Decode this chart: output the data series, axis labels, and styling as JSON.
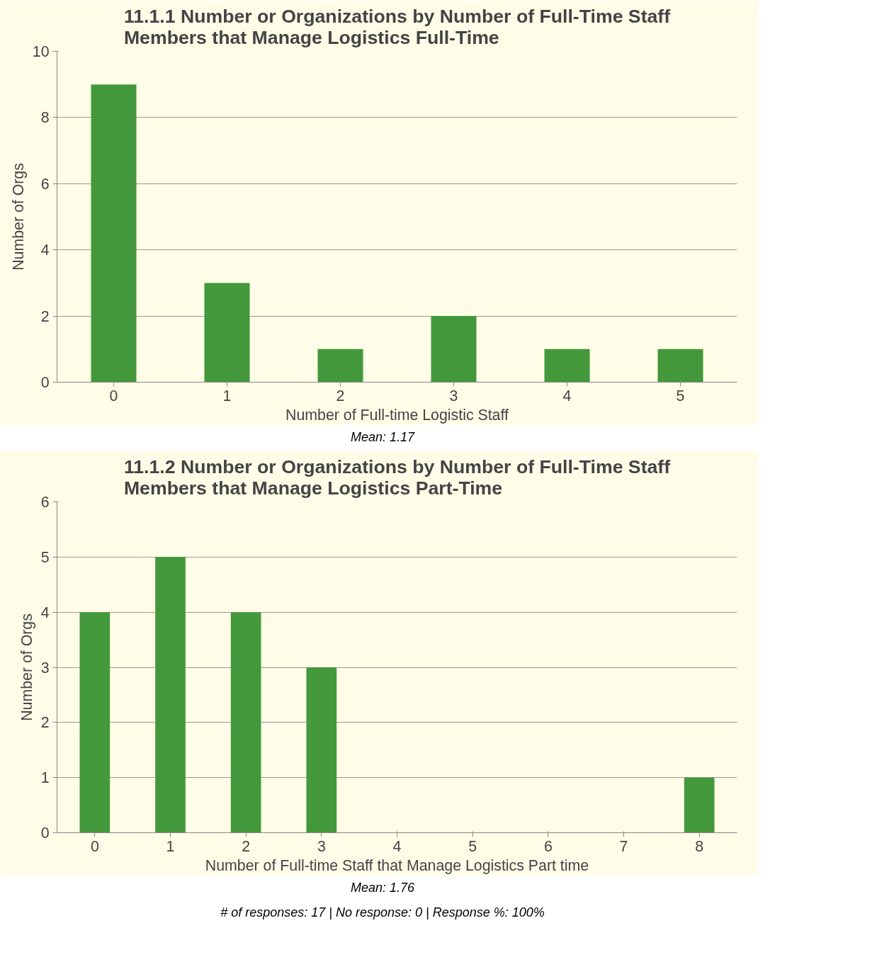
{
  "chart_data": [
    {
      "type": "bar",
      "title": "11.1.1 Number or Organizations by Number of Full-Time Staff\nMembers that Manage Logistics Full-Time",
      "xlabel": "Number of Full-time Logistic Staff",
      "ylabel": "Number of Orgs",
      "categories": [
        "0",
        "1",
        "2",
        "3",
        "4",
        "5"
      ],
      "values": [
        9,
        3,
        1,
        2,
        1,
        1
      ],
      "color": "#43983b",
      "ylim": [
        0,
        10
      ],
      "yticks": [
        0,
        2,
        4,
        6,
        8,
        10
      ],
      "grid": "y",
      "annotations": [
        "Mean: 1.17"
      ]
    },
    {
      "type": "bar",
      "title": "11.1.2 Number or Organizations by Number of Full-Time Staff\nMembers that Manage Logistics Part-Time",
      "xlabel": "Number of Full-time Staff that Manage Logistics Part time",
      "ylabel": "Number of Orgs",
      "categories": [
        "0",
        "1",
        "2",
        "3",
        "4",
        "5",
        "6",
        "7",
        "8"
      ],
      "values": [
        4,
        5,
        4,
        3,
        0,
        0,
        0,
        0,
        1
      ],
      "color": "#43983b",
      "ylim": [
        0,
        6
      ],
      "yticks": [
        0,
        1,
        2,
        3,
        4,
        5,
        6
      ],
      "grid": "y",
      "annotations": [
        "Mean: 1.76",
        "# of responses: 17 | No response: 0 | Response %: 100%"
      ]
    }
  ]
}
